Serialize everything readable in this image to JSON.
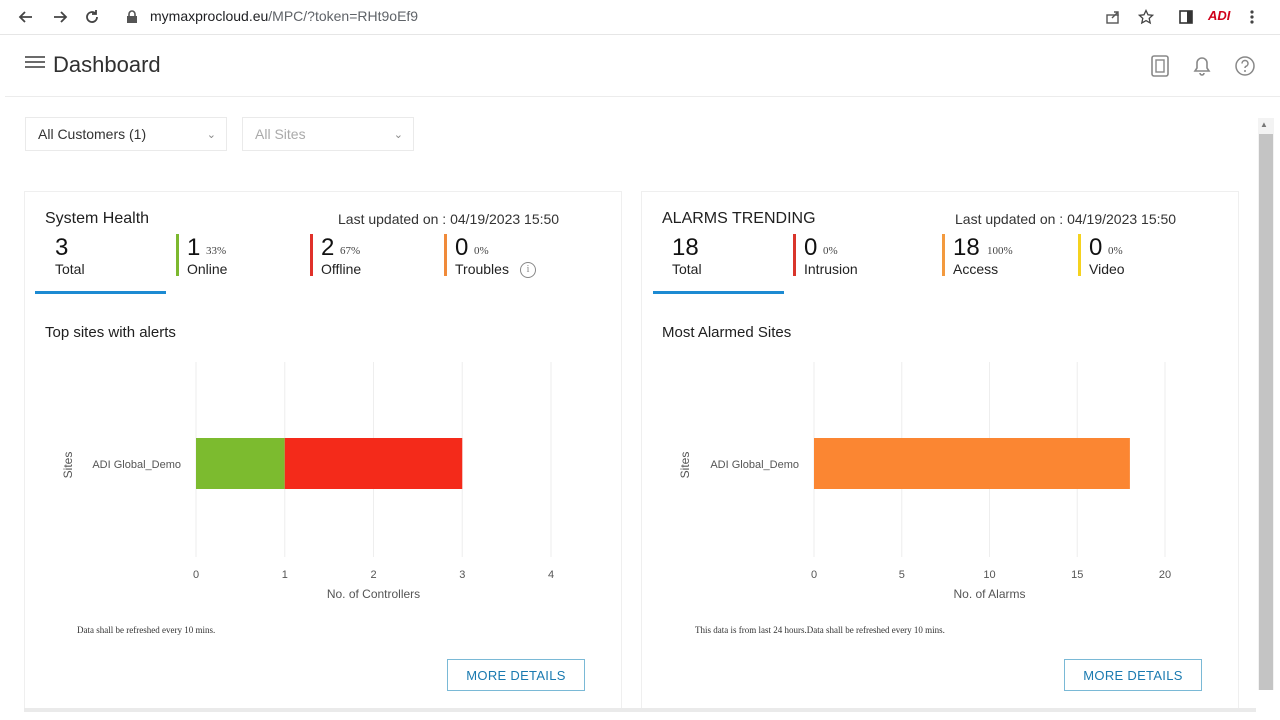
{
  "browser": {
    "url_host": "mymaxprocloud.eu",
    "url_path": "/MPC/?token=RHt9oEf9",
    "profile_badge": "ADI"
  },
  "header": {
    "title": "Dashboard"
  },
  "filters": {
    "customers": "All Customers (1)",
    "sites": "All Sites"
  },
  "system_health": {
    "title": "System Health",
    "updated_label": "Last updated on :",
    "updated_value": "04/19/2023 15:50",
    "stats": [
      {
        "num": "3",
        "pct": "",
        "label": "Total",
        "color": ""
      },
      {
        "num": "1",
        "pct": "33%",
        "label": "Online",
        "color": "#7cb82f"
      },
      {
        "num": "2",
        "pct": "67%",
        "label": "Offline",
        "color": "#e0312a"
      },
      {
        "num": "0",
        "pct": "0%",
        "label": "Troubles",
        "color": "#f08a3a"
      }
    ],
    "section_title": "Top sites with alerts",
    "note": "Data shall be refreshed every 10 mins.",
    "more": "MORE DETAILS"
  },
  "alarms": {
    "title": "ALARMS TRENDING",
    "updated_label": "Last updated on :",
    "updated_value": "04/19/2023 15:50",
    "stats": [
      {
        "num": "18",
        "pct": "",
        "label": "Total",
        "color": ""
      },
      {
        "num": "0",
        "pct": "0%",
        "label": "Intrusion",
        "color": "#d9352b"
      },
      {
        "num": "18",
        "pct": "100%",
        "label": "Access",
        "color": "#f39a3e"
      },
      {
        "num": "0",
        "pct": "0%",
        "label": "Video",
        "color": "#f5d21f"
      }
    ],
    "section_title": "Most Alarmed Sites",
    "note": "This data is from last 24 hours.Data shall be refreshed every 10 mins.",
    "more": "MORE DETAILS"
  },
  "chart_data": [
    {
      "type": "bar",
      "orientation": "horizontal",
      "stacked": true,
      "categories": [
        "ADI Global_Demo"
      ],
      "series": [
        {
          "name": "Online",
          "values": [
            1
          ],
          "color": "#7cbb2f"
        },
        {
          "name": "Offline",
          "values": [
            2
          ],
          "color": "#f42a1a"
        }
      ],
      "xlabel": "No. of Controllers",
      "ylabel": "Sites",
      "xlim": [
        0,
        4
      ],
      "xticks": [
        "0",
        "1",
        "2",
        "3",
        "4"
      ]
    },
    {
      "type": "bar",
      "orientation": "horizontal",
      "categories": [
        "ADI Global_Demo"
      ],
      "series": [
        {
          "name": "Access",
          "values": [
            18
          ],
          "color": "#fb8632"
        }
      ],
      "xlabel": "No. of Alarms",
      "ylabel": "Sites",
      "xlim": [
        0,
        20
      ],
      "xticks": [
        "0",
        "5",
        "10",
        "15",
        "20"
      ]
    }
  ]
}
